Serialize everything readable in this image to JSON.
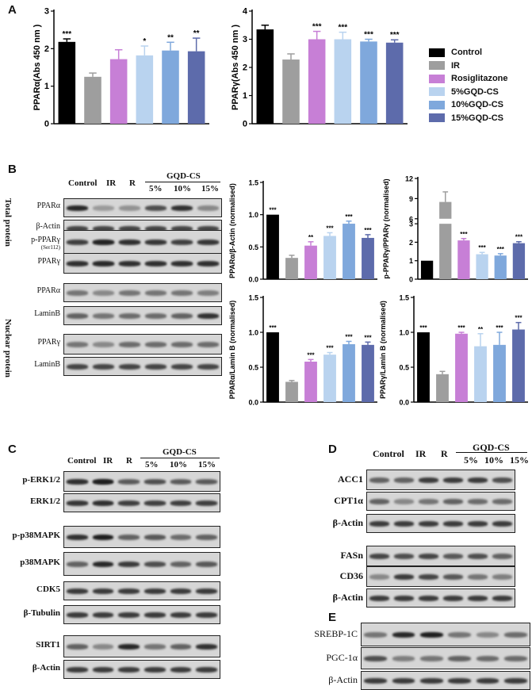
{
  "panels": {
    "A": "A",
    "B": "B",
    "C": "C",
    "D": "D",
    "E": "E"
  },
  "legend": {
    "items": [
      {
        "label": "Control",
        "color": "#000000"
      },
      {
        "label": "IR",
        "color": "#9e9e9e"
      },
      {
        "label": "Rosiglitazone",
        "color": "#c77fd6"
      },
      {
        "label": "5%GQD-CS",
        "color": "#b9d3ef"
      },
      {
        "label": "10%GQD-CS",
        "color": "#7fa8dc"
      },
      {
        "label": "15%GQD-CS",
        "color": "#5d6bab"
      }
    ]
  },
  "lanes": {
    "control": "Control",
    "ir": "IR",
    "r": "R",
    "group": "GQD-CS",
    "p5": "5%",
    "p10": "10%",
    "p15": "15%"
  },
  "blotB": {
    "side_total": "Total protein",
    "side_nuclear": "Nuclear protein",
    "rows": [
      "PPARα",
      "β-Actin",
      "p-PPARγ",
      "PPARγ",
      "PPARα",
      "LaminB",
      "PPARγ",
      "LaminB"
    ],
    "ser": "(Ser112)"
  },
  "blotC": {
    "rows": [
      "p-ERK1/2",
      "ERK1/2",
      "p-p38MAPK",
      "p38MAPK",
      "CDK5",
      "β-Tubulin",
      "SIRT1",
      "β-Actin"
    ]
  },
  "blotD": {
    "rows": [
      "ACC1",
      "CPT1α",
      "β-Actin",
      "FASn",
      "CD36",
      "β-Actin"
    ]
  },
  "blotE": {
    "rows": [
      "SREBP-1C",
      "PGC-1α",
      "β-Actin"
    ]
  },
  "chart_data": [
    {
      "type": "bar",
      "ylabel": "PPARα(Abs 450 nm )",
      "ylim": [
        0,
        3
      ],
      "yticks": [
        0,
        1,
        2,
        3
      ],
      "categories": [
        "Control",
        "IR",
        "Rosiglitazone",
        "5%GQD-CS",
        "10%GQD-CS",
        "15%GQD-CS"
      ],
      "values": [
        2.18,
        1.25,
        1.72,
        1.82,
        1.95,
        1.93
      ],
      "errors": [
        0.08,
        0.1,
        0.25,
        0.25,
        0.22,
        0.35
      ],
      "significance": [
        "***",
        "",
        "",
        "*",
        "**",
        "**"
      ]
    },
    {
      "type": "bar",
      "ylabel": "PPARγ(Abs 450 nm )",
      "ylim": [
        0,
        4
      ],
      "yticks": [
        0,
        1,
        2,
        3,
        4
      ],
      "categories": [
        "Control",
        "IR",
        "Rosiglitazone",
        "5%GQD-CS",
        "10%GQD-CS",
        "15%GQD-CS"
      ],
      "values": [
        3.35,
        2.28,
        3.0,
        3.0,
        2.92,
        2.88
      ],
      "errors": [
        0.15,
        0.2,
        0.28,
        0.25,
        0.08,
        0.1
      ],
      "significance": [
        "",
        "",
        "***",
        "***",
        "***",
        "***"
      ]
    },
    {
      "type": "bar",
      "ylabel": "PPARα/β-Actin (normalised)",
      "ylim": [
        0,
        1.5
      ],
      "yticks": [
        0,
        0.5,
        1.0,
        1.5
      ],
      "categories": [
        "Control",
        "IR",
        "Rosiglitazone",
        "5%GQD-CS",
        "10%GQD-CS",
        "15%GQD-CS"
      ],
      "values": [
        1.0,
        0.33,
        0.52,
        0.67,
        0.86,
        0.64
      ],
      "errors": [
        0,
        0.04,
        0.06,
        0.05,
        0.04,
        0.05
      ],
      "significance": [
        "***",
        "",
        "**",
        "***",
        "***",
        "***"
      ]
    },
    {
      "type": "bar",
      "ylabel": "p-PPARγ/PPARγ (normalised)",
      "ylim": [
        0,
        12
      ],
      "yticks": [
        0,
        1,
        2,
        3,
        6,
        9,
        12
      ],
      "categories": [
        "Control",
        "IR",
        "Rosiglitazone",
        "5%GQD-CS",
        "10%GQD-CS",
        "15%GQD-CS"
      ],
      "values": [
        1.0,
        8.5,
        2.1,
        1.35,
        1.28,
        1.95
      ],
      "errors": [
        0,
        1.5,
        0.1,
        0.1,
        0.1,
        0.08
      ],
      "significance": [
        "",
        "",
        "***",
        "***",
        "***",
        "***"
      ]
    },
    {
      "type": "bar",
      "ylabel": "PPARα/Lamin B (normalised)",
      "ylim": [
        0,
        1.5
      ],
      "yticks": [
        0,
        0.5,
        1.0,
        1.5
      ],
      "categories": [
        "Control",
        "IR",
        "Rosiglitazone",
        "5%GQD-CS",
        "10%GQD-CS",
        "15%GQD-CS"
      ],
      "values": [
        1.0,
        0.29,
        0.58,
        0.68,
        0.83,
        0.82
      ],
      "errors": [
        0,
        0.02,
        0.03,
        0.03,
        0.04,
        0.04
      ],
      "significance": [
        "***",
        "",
        "***",
        "***",
        "***",
        "***"
      ]
    },
    {
      "type": "bar",
      "ylabel": "PPARγ/Lamin B (normalised)",
      "ylim": [
        0,
        1.5
      ],
      "yticks": [
        0,
        0.5,
        1.0,
        1.5
      ],
      "categories": [
        "Control",
        "IR",
        "Rosiglitazone",
        "5%GQD-CS",
        "10%GQD-CS",
        "15%GQD-CS"
      ],
      "values": [
        1.0,
        0.4,
        0.98,
        0.8,
        0.82,
        1.04
      ],
      "errors": [
        0,
        0.04,
        0.02,
        0.18,
        0.18,
        0.1
      ],
      "significance": [
        "***",
        "",
        "***",
        "**",
        "***",
        "***"
      ]
    }
  ]
}
